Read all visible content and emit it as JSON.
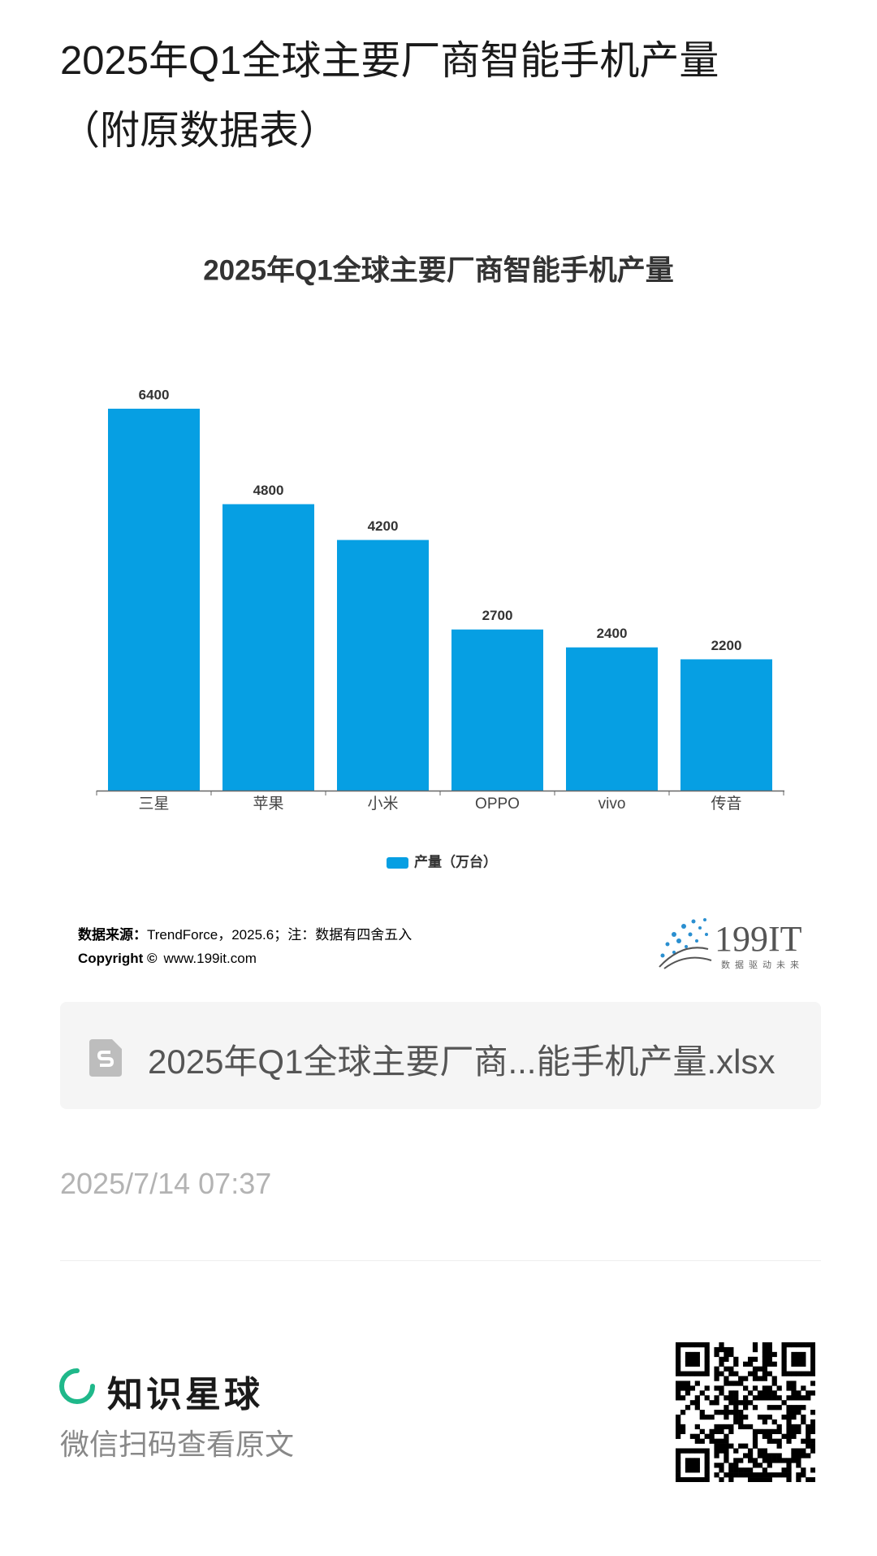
{
  "header": {
    "title": "2025年Q1全球主要厂商智能手机产量（附原数据表）"
  },
  "chart_data": {
    "type": "bar",
    "title": "2025年Q1全球主要厂商智能手机产量",
    "categories": [
      "三星",
      "苹果",
      "小米",
      "OPPO",
      "vivo",
      "传音"
    ],
    "series": [
      {
        "name": "产量（万台）",
        "color": "#069fe3",
        "values": [
          6400,
          4800,
          4200,
          2700,
          2400,
          2200
        ]
      }
    ],
    "legend": "bottom"
  },
  "source": {
    "label": "数据来源：",
    "text": "TrendForce，2025.6；注：数据有四舍五入",
    "copyright_label": "Copyright ©",
    "site": "www.199it.com",
    "logo": "199IT",
    "slogan": "数据驱动未来"
  },
  "file": {
    "name": "2025年Q1全球主要厂商...能手机产量.xlsx"
  },
  "date": "2025/7/14 07:37",
  "footer": {
    "brand": "知识星球",
    "hint": "微信扫码查看原文"
  }
}
